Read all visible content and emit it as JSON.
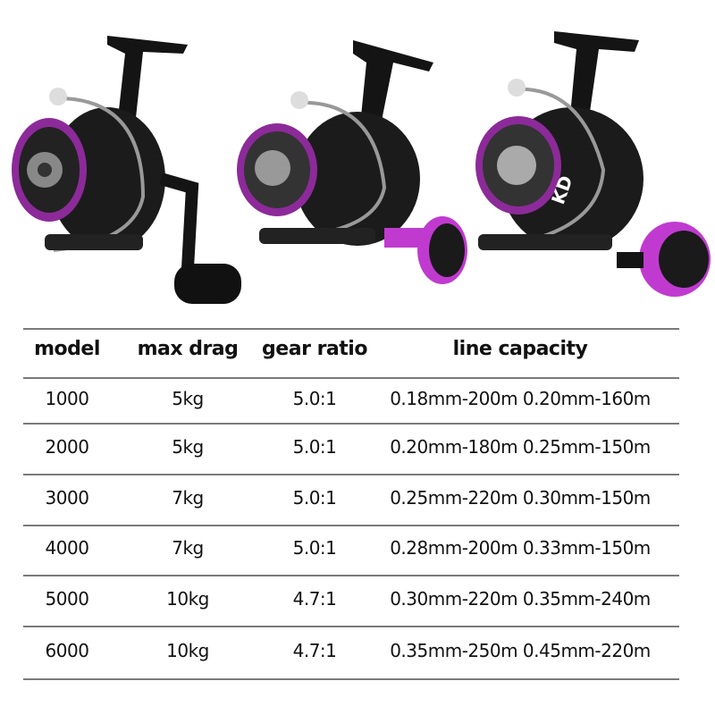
{
  "product_images": [
    {
      "name": "reel-1",
      "accent": "#c03ad0"
    },
    {
      "name": "reel-2",
      "accent": "#c03ad0"
    },
    {
      "name": "reel-3",
      "accent": "#c03ad0",
      "logo": "KD"
    }
  ],
  "colors": {
    "accent": "#c03ad0",
    "body": "#141414",
    "divider": "#7a7a7a"
  },
  "table": {
    "headers": [
      "model",
      "max drag",
      "gear ratio",
      "line capacity"
    ],
    "rows": [
      [
        "1000",
        "5kg",
        "5.0:1",
        "0.18mm-200m 0.20mm-160m"
      ],
      [
        "2000",
        "5kg",
        "5.0:1",
        "0.20mm-180m 0.25mm-150m"
      ],
      [
        "3000",
        "7kg",
        "5.0:1",
        "0.25mm-220m 0.30mm-150m"
      ],
      [
        "4000",
        "7kg",
        "5.0:1",
        "0.28mm-200m 0.33mm-150m"
      ],
      [
        "5000",
        "10kg",
        "4.7:1",
        "0.30mm-220m 0.35mm-240m"
      ],
      [
        "6000",
        "10kg",
        "4.7:1",
        "0.35mm-250m 0.45mm-220m"
      ]
    ]
  }
}
